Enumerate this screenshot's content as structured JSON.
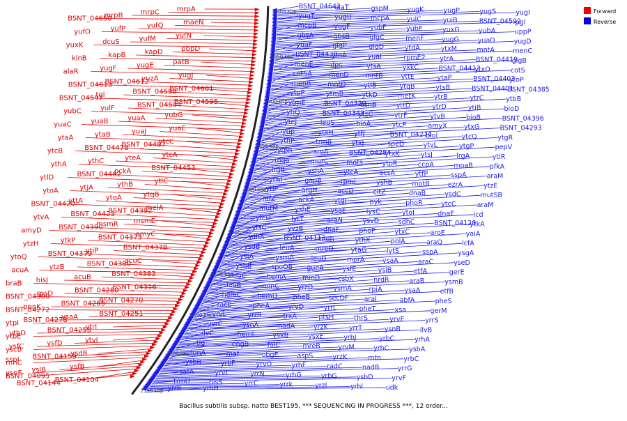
{
  "caption": "Bacillus subtilis subsp. natto BEST195, *** SEQUENCING IN PROGRESS ***, 12 order...",
  "legend": {
    "forward": {
      "label": "Forward",
      "color": "#ee0000"
    },
    "reverse": {
      "label": "Reverse",
      "color": "#0000ee"
    }
  },
  "colors": {
    "forward": "#dd0000",
    "reverse": "#1a1aee",
    "axis": "#222222"
  },
  "ticks": [
    "3000 kbp",
    "2950 kbp",
    "2900 kbp",
    "2850 kbp",
    "2800 kbp",
    "2750 kbp",
    "2700 kbp",
    "2650 kbp",
    "2600 kbp",
    "2550 kbp"
  ],
  "forward_genes": [
    "mrpA",
    "mrpC",
    "mrpB",
    "BSNT_04650",
    "maeN",
    "yufQ",
    "yufP",
    "yufO",
    "yufN",
    "yufM",
    "dcuS",
    "yuxK",
    "pbpD",
    "kapD",
    "kapB",
    "kinB",
    "patB",
    "yugE",
    "yugF",
    "alaR",
    "yugJ",
    "yuzA",
    "BSNT_04612",
    "BSNT_04613",
    "BSNT_04601",
    "BSNT_04598",
    "tgl",
    "BSNT_04597",
    "BSNT_04595",
    "BSNT_04594",
    "yulF",
    "yubC",
    "yubG",
    "yuaA",
    "yuaB",
    "yuaC",
    "yuaE",
    "yuaJ",
    "ytaB",
    "ytaA",
    "ytcC",
    "BSNT_04487",
    "BSNT_04478",
    "ytcB",
    "ytcA",
    "yteA",
    "ythC",
    "ythA",
    "BSNT_04453",
    "pckA",
    "BSNT_04462",
    "ytlD",
    "ytlC",
    "ythB",
    "ytjA",
    "ytoA",
    "ytqB",
    "ytqA",
    "yttA",
    "BSNT_04420",
    "melA",
    "BSNT_04392",
    "BSNT_04423",
    "ytvA",
    "msmE",
    "msmR",
    "BSNT_04390",
    "amyD",
    "amyC",
    "BSNT_04373",
    "ytkP",
    "ytzH",
    "BSNT_04378",
    "ytiP",
    "BSNT_04379",
    "ytoQ",
    "acuC",
    "BSNT_04380",
    "ytzB",
    "acuA",
    "BSNT_04383",
    "acuB",
    "hisJ",
    "braB",
    "BSNT_04316",
    "BSNT_04280",
    "rpsD",
    "BSNT_04300",
    "BSNT_04270",
    "BSNT_04265",
    "ppnK",
    "BSNT_04272",
    "BSNT_04251",
    "ysaA",
    "BSNT_04278",
    "ytpI",
    "ytrI",
    "BSNT_04255",
    "ytbD",
    "ytbE",
    "ytvI",
    "ysfD",
    "ysfC",
    "yscB",
    "ysdB",
    "BSNT_04159",
    "sspI",
    "rnhC",
    "ysfB",
    "yslB",
    "ysnF",
    "BSNT_04095",
    "BSNT_04104",
    "BSNT_04144"
  ],
  "reverse_genes": [
    "BSNT_04641",
    "alaT",
    "gspM",
    "yugK",
    "yugP",
    "yugS",
    "yugI",
    "yugT",
    "yugU",
    "mcpA",
    "yuiC",
    "yuiB",
    "BSNT_04592",
    "pgl",
    "mcpB",
    "yugF",
    "yubF",
    "yubE",
    "yuxG",
    "yubA",
    "uppP",
    "gbsA",
    "gbsB",
    "glgC",
    "menF",
    "yugG",
    "yuaD",
    "yugD",
    "yuaF",
    "glgP",
    "glgD",
    "ytdA",
    "ytxM",
    "mntA",
    "menC",
    "BSNT_04438",
    "ytnA",
    "yuaI",
    "rpmE2",
    "ytrA",
    "BSNT_04419",
    "glgB",
    "menE",
    "dps",
    "ytsA",
    "yxkC",
    "BSNT_04413",
    "ytxO",
    "cotS",
    "cotSA",
    "menD",
    "mntB",
    "yttE",
    "ytaP",
    "BSNT_04403",
    "ytoP",
    "menB",
    "mntD",
    "ytlB",
    "ytqB",
    "ytsB",
    "BSNT_04401",
    "BSNT_04385",
    "ytpP",
    "ytmB",
    "ytkD",
    "metK",
    "ytrB",
    "ytrC",
    "ytbB",
    "ytmE",
    "BSNT_04339",
    "asnB",
    "yttD",
    "ytrD",
    "ytiB",
    "bioD",
    "ytiQ",
    "BSNT_04343",
    "ytzC",
    "ytrF",
    "ytvB",
    "bioB",
    "BSNT_04396",
    "yteJ",
    "leuS",
    "bioA",
    "ytcP",
    "amyX",
    "ytxG",
    "BSNT_04293",
    "ytip",
    "ytxH",
    "ytfJ",
    "BSNT_04274",
    "biol",
    "ytcQ",
    "ytgR",
    "ythP",
    "trmB",
    "ytxJ",
    "speD",
    "ytvL",
    "ytgP",
    "pepV",
    "ytpR",
    "aroA",
    "BSNT_04284",
    "ytxK",
    "ytsJ",
    "lrgA",
    "ytlR",
    "mqo",
    "murC",
    "mots",
    "ytpR",
    "ccpA",
    "moaB",
    "pfkA",
    "lrgB",
    "yshA",
    "ytcA",
    "acsA",
    "ytfP",
    "sspA",
    "araM",
    "ytwl",
    "gapB",
    "rpml",
    "yshB",
    "motB",
    "ezrA",
    "ytzE",
    "ytlP",
    "argH",
    "accD",
    "citZ",
    "dnaB",
    "ysdC",
    "mutSB",
    "nifZ",
    "ackA",
    "ytqI",
    "pyk",
    "phoR",
    "ytcC",
    "araM",
    "mutM",
    "yshE",
    "ysaE",
    "lysC",
    "ytoI",
    "dnaE",
    "icd",
    "ytcD",
    "lytT",
    "araN",
    "ysvD",
    "sdhC",
    "BSNT_04128",
    "ytkA",
    "ytsC",
    "yvzB",
    "dnaF",
    "phoP",
    "ytxC",
    "aroE",
    "yaiA",
    "sdhA",
    "BSNT_04113",
    "mdh",
    "ythX",
    "polA",
    "araQ",
    "lcfA",
    "ysdB",
    "leuA",
    "mreD",
    "ytaG",
    "lytS",
    "sspA",
    "ysgA",
    "ysiA",
    "ysmA",
    "leuD",
    "mprA",
    "ysaA",
    "araC",
    "yseD",
    "ysbB",
    "spoOB",
    "gueA",
    "ysfE",
    "ysiB",
    "etfA",
    "gerE",
    "leuC",
    "hemA",
    "minD",
    "csbX",
    "nrdR",
    "araB",
    "ysmB",
    "leuB",
    "minC",
    "yrzD",
    "ysmA",
    "rpiA",
    "ysaA",
    "etfB",
    "hemC",
    "hemD",
    "pheB",
    "secDF",
    "araI",
    "abfA",
    "pheS",
    "racE",
    "pheA",
    "yrvD",
    "yrrL",
    "pheT",
    "xsa",
    "gerM",
    "yrvL",
    "yrrR",
    "trxA",
    "ptsH",
    "thrS",
    "yrvE",
    "yrrS",
    "uvrC",
    "ysnA",
    "nadA",
    "yrzK",
    "yrrT",
    "ysnB",
    "ilvB",
    "ilvC",
    "hemL",
    "ysxB",
    "ysxE",
    "yrbJ",
    "yrbC",
    "yrhA",
    "tig",
    "engB",
    "folC",
    "mreB",
    "yrvM",
    "yrhC",
    "ysbA",
    "lonA",
    "maf",
    "obgE",
    "aspS",
    "yrzK",
    "mtn",
    "yrbC",
    "ysbB",
    "yrbF",
    "yrvO",
    "yrhF",
    "radC",
    "nadB",
    "yrrG",
    "safA",
    "yrvI",
    "yrrN",
    "yrhG",
    "yrbG",
    "ysbD",
    "yrvF",
    "trmU",
    "hisS",
    "yrrC",
    "yrrk",
    "yrzl",
    "yrhl",
    "udk",
    "yrrB",
    "yrhH"
  ]
}
